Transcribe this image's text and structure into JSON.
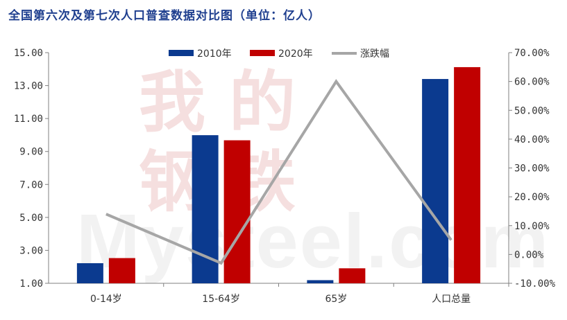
{
  "title": "全国第六次及第七次人口普查数据对比图（单位：亿人）",
  "watermark": {
    "chinese": [
      "我",
      "的",
      "钢",
      "铁"
    ],
    "english": "Mysteel.com"
  },
  "colors": {
    "series_2010": "#0b3a8f",
    "series_2020": "#c00000",
    "change_line": "#a6a6a6",
    "title": "#1f3f8f"
  },
  "chart_data": {
    "type": "bar",
    "categories": [
      "0-14岁",
      "15-64岁",
      "65岁",
      "人口总量"
    ],
    "series": [
      {
        "name": "2010年",
        "axis": "left",
        "kind": "bar",
        "values": [
          2.22,
          9.99,
          1.19,
          13.4
        ]
      },
      {
        "name": "2020年",
        "axis": "left",
        "kind": "bar",
        "values": [
          2.53,
          9.68,
          1.91,
          14.12
        ]
      },
      {
        "name": "涨跌幅",
        "axis": "right",
        "kind": "line",
        "values": [
          0.14,
          -0.03,
          0.6,
          0.05
        ]
      }
    ],
    "y_left": {
      "lim": [
        1.0,
        15.0
      ],
      "ticks": [
        "1.00",
        "3.00",
        "5.00",
        "7.00",
        "9.00",
        "11.00",
        "13.00",
        "15.00"
      ]
    },
    "y_right": {
      "lim": [
        -0.1,
        0.7
      ],
      "ticks": [
        "-10.00%",
        "0.00%",
        "10.00%",
        "20.00%",
        "30.00%",
        "40.00%",
        "50.00%",
        "60.00%",
        "70.00%"
      ]
    },
    "legend": [
      "2010年",
      "2020年",
      "涨跌幅"
    ],
    "legend_position": "top-center",
    "grid": false
  }
}
